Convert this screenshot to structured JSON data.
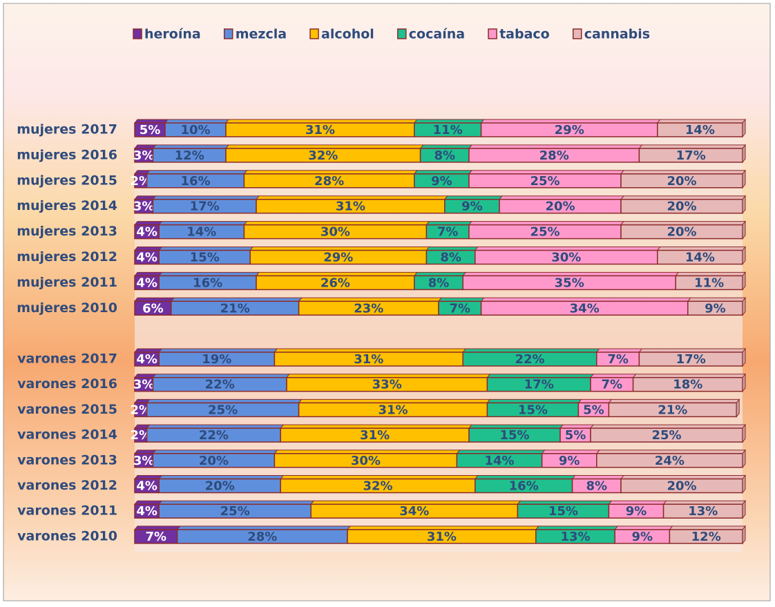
{
  "chart_data": {
    "type": "stacked-bar-horizontal",
    "categories": [
      "mujeres 2017",
      "mujeres 2016",
      "mujeres 2015",
      "mujeres 2014",
      "mujeres 2013",
      "mujeres 2012",
      "mujeres 2011",
      "mujeres 2010",
      "varones 2017",
      "varones 2016",
      "varones 2015",
      "varones 2014",
      "varones 2013",
      "varones 2012",
      "varones 2011",
      "varones 2010"
    ],
    "xlim": [
      0,
      100
    ],
    "legend": "top",
    "series": [
      {
        "name": "heroína",
        "color": "#7030a0",
        "values": [
          5,
          3,
          2,
          3,
          4,
          4,
          4,
          6,
          4,
          3,
          2,
          2,
          3,
          4,
          4,
          7
        ],
        "value_labels": [
          "5%",
          "3%",
          "2%",
          "3%",
          "4%",
          "4%",
          "4%",
          "6%",
          "4%",
          "3%",
          "2%",
          "2%",
          "3%",
          "4%",
          "4%",
          "7%"
        ]
      },
      {
        "name": "mezcla",
        "color": "#5f8fdc",
        "values": [
          10,
          12,
          16,
          17,
          14,
          15,
          16,
          21,
          19,
          22,
          25,
          22,
          20,
          20,
          25,
          28
        ],
        "value_labels": [
          "10%",
          "12%",
          "16%",
          "17%",
          "14%",
          "15%",
          "16%",
          "21%",
          "19%",
          "22%",
          "25%",
          "22%",
          "20%",
          "20%",
          "25%",
          "28%"
        ]
      },
      {
        "name": "alcohol",
        "color": "#ffc000",
        "values": [
          31,
          32,
          28,
          31,
          30,
          29,
          26,
          23,
          31,
          33,
          31,
          31,
          30,
          32,
          34,
          31
        ],
        "value_labels": [
          "31%",
          "32%",
          "28%",
          "31%",
          "30%",
          "29%",
          "26%",
          "23%",
          "31%",
          "33%",
          "31%",
          "31%",
          "30%",
          "32%",
          "34%",
          "31%"
        ]
      },
      {
        "name": "cocaína",
        "color": "#1fc08e",
        "values": [
          11,
          8,
          9,
          9,
          7,
          8,
          8,
          7,
          22,
          17,
          15,
          15,
          14,
          16,
          15,
          13
        ],
        "value_labels": [
          "11%",
          "8%",
          "9%",
          "9%",
          "7%",
          "8%",
          "8%",
          "7%",
          "22%",
          "17%",
          "15%",
          "15%",
          "14%",
          "16%",
          "15%",
          "13%"
        ]
      },
      {
        "name": "tabaco",
        "color": "#ff99cc",
        "values": [
          29,
          28,
          25,
          20,
          25,
          30,
          35,
          34,
          7,
          7,
          5,
          5,
          9,
          8,
          9,
          9
        ],
        "value_labels": [
          "29%",
          "28%",
          "25%",
          "20%",
          "25%",
          "30%",
          "35%",
          "34%",
          "7%",
          "7%",
          "5%",
          "5%",
          "9%",
          "8%",
          "9%",
          "9%"
        ]
      },
      {
        "name": "cannabis",
        "color": "#e6b9b8",
        "values": [
          14,
          17,
          20,
          20,
          20,
          14,
          11,
          9,
          17,
          18,
          21,
          25,
          24,
          20,
          13,
          12
        ],
        "value_labels": [
          "14%",
          "17%",
          "20%",
          "20%",
          "20%",
          "14%",
          "11%",
          "9%",
          "17%",
          "18%",
          "21%",
          "25%",
          "24%",
          "20%",
          "13%",
          "12%"
        ]
      }
    ]
  }
}
